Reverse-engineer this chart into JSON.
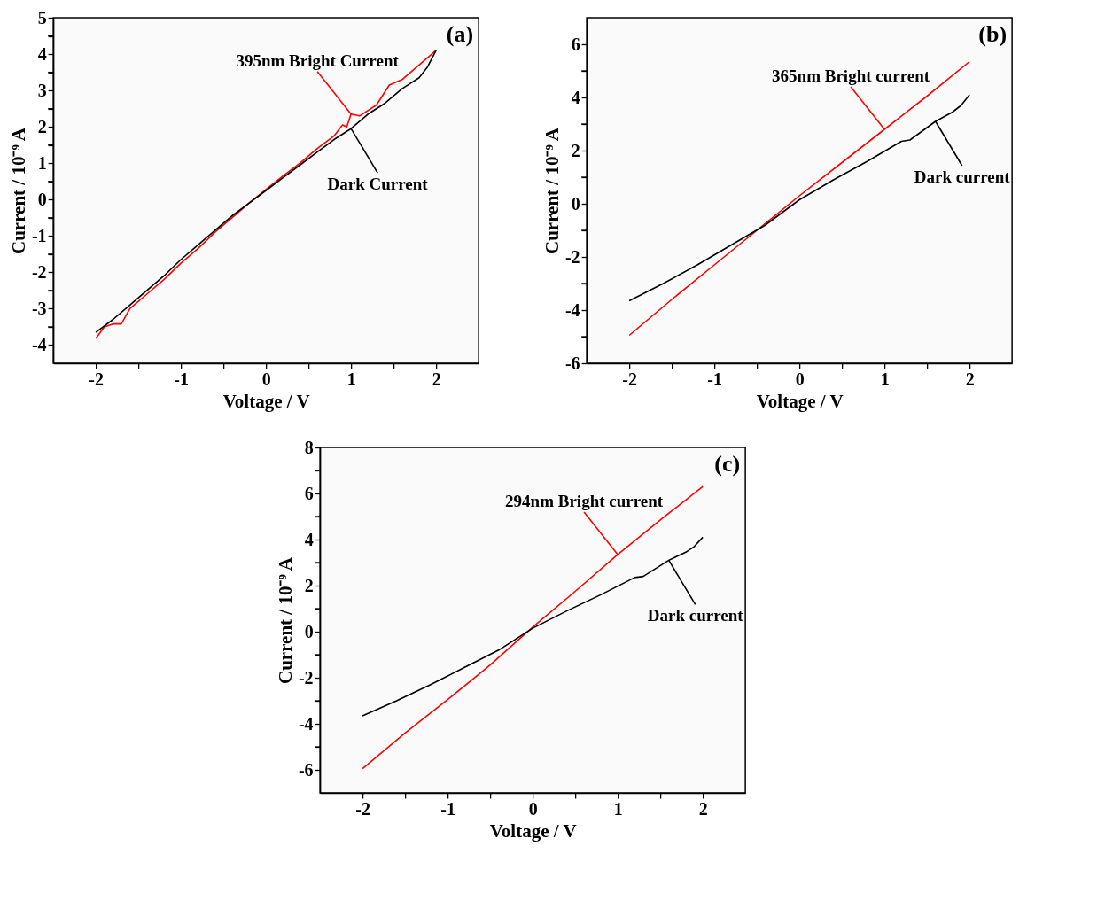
{
  "chart_data": [
    {
      "type": "line",
      "xlabel": "Voltage / V",
      "ylabel": "Current / 10⁻⁹ A",
      "annotations": [
        "(a)"
      ],
      "xlim": [
        -2.5,
        2.5
      ],
      "ylim": [
        -4.5,
        5
      ],
      "xticks": [
        -2,
        {
          "value": -1.5,
          "label": null
        },
        -1,
        {
          "value": -0.5,
          "label": null
        },
        0,
        {
          "value": 0.5,
          "label": null
        },
        1,
        {
          "value": 1.5,
          "label": null
        },
        2
      ],
      "yticks": [
        -4,
        {
          "value": -3.5,
          "label": null
        },
        -3,
        {
          "value": -2.5,
          "label": null
        },
        -2,
        {
          "value": -1.5,
          "label": null
        },
        -1,
        {
          "value": -0.5,
          "label": null
        },
        0,
        {
          "value": 0.5,
          "label": null
        },
        1,
        {
          "value": 1.5,
          "label": null
        },
        2,
        {
          "value": 2.5,
          "label": null
        },
        3,
        {
          "value": 3.5,
          "label": null
        },
        4,
        {
          "value": 4.5,
          "label": null
        },
        5
      ],
      "grid": false,
      "marker": "none",
      "line_style": "solid",
      "series": [
        {
          "name": "395nm Bright Current",
          "color": "#ff0000",
          "x": [
            -2,
            -1.9,
            -1.8,
            -1.7,
            -1.6,
            -1.4,
            -1.2,
            -1,
            -0.8,
            -0.6,
            -0.4,
            -0.2,
            0,
            0.2,
            0.4,
            0.6,
            0.8,
            0.9,
            0.95,
            1.0,
            1.1,
            1.3,
            1.45,
            1.6,
            1.8,
            2
          ],
          "values": [
            -3.82,
            -3.5,
            -3.42,
            -3.42,
            -3.0,
            -2.6,
            -2.2,
            -1.75,
            -1.35,
            -0.9,
            -0.5,
            -0.1,
            0.28,
            0.65,
            1.0,
            1.4,
            1.75,
            2.05,
            2.0,
            2.35,
            2.3,
            2.6,
            3.15,
            3.3,
            3.7,
            4.1
          ]
        },
        {
          "name": "Dark Current",
          "color": "#000000",
          "x": [
            -2,
            -1.8,
            -1.6,
            -1.4,
            -1.2,
            -1,
            -0.8,
            -0.6,
            -0.4,
            -0.2,
            0,
            0.2,
            0.4,
            0.6,
            0.8,
            1.0,
            1.2,
            1.4,
            1.6,
            1.8,
            1.9,
            2
          ],
          "values": [
            -3.65,
            -3.3,
            -2.9,
            -2.5,
            -2.1,
            -1.65,
            -1.25,
            -0.85,
            -0.45,
            -0.1,
            0.25,
            0.6,
            0.95,
            1.3,
            1.65,
            1.95,
            2.35,
            2.65,
            3.05,
            3.35,
            3.65,
            4.1
          ]
        }
      ]
    },
    {
      "type": "line",
      "xlabel": "Voltage / V",
      "ylabel": "Current / 10⁻⁹ A",
      "annotations": [
        "(b)"
      ],
      "xlim": [
        -2.5,
        2.5
      ],
      "ylim": [
        -6,
        7
      ],
      "xticks": [
        -2,
        {
          "value": -1.5,
          "label": null
        },
        -1,
        {
          "value": -0.5,
          "label": null
        },
        0,
        {
          "value": 0.5,
          "label": null
        },
        1,
        {
          "value": 1.5,
          "label": null
        },
        2
      ],
      "yticks": [
        -6,
        {
          "value": -5,
          "label": null
        },
        -4,
        {
          "value": -3,
          "label": null
        },
        -2,
        {
          "value": -1,
          "label": null
        },
        0,
        {
          "value": 1,
          "label": null
        },
        2,
        {
          "value": 3,
          "label": null
        },
        4,
        {
          "value": 5,
          "label": null
        },
        6
      ],
      "grid": false,
      "marker": "none",
      "line_style": "solid",
      "series": [
        {
          "name": "365nm Bright current",
          "color": "#ff0000",
          "x": [
            -2,
            -1.5,
            -1,
            -0.5,
            0,
            0.5,
            1,
            1.5,
            2
          ],
          "values": [
            -4.95,
            -3.6,
            -2.3,
            -1.0,
            0.3,
            1.55,
            2.8,
            4.05,
            5.35
          ]
        },
        {
          "name": "Dark current",
          "color": "#000000",
          "x": [
            -2,
            -1.6,
            -1.2,
            -0.8,
            -0.4,
            0,
            0.4,
            0.8,
            1.2,
            1.3,
            1.6,
            1.8,
            1.9,
            2
          ],
          "values": [
            -3.65,
            -3.0,
            -2.3,
            -1.55,
            -0.8,
            0.15,
            0.9,
            1.6,
            2.35,
            2.4,
            3.1,
            3.45,
            3.7,
            4.1
          ]
        }
      ]
    },
    {
      "type": "line",
      "xlabel": "Voltage / V",
      "ylabel": "Current / 10⁻⁹ A",
      "annotations": [
        "(c)"
      ],
      "xlim": [
        -2.5,
        2.5
      ],
      "ylim": [
        -7,
        8
      ],
      "xticks": [
        -2,
        {
          "value": -1.5,
          "label": null
        },
        -1,
        {
          "value": -0.5,
          "label": null
        },
        0,
        {
          "value": 0.5,
          "label": null
        },
        1,
        {
          "value": 1.5,
          "label": null
        },
        2
      ],
      "yticks": [
        -6,
        {
          "value": -5,
          "label": null
        },
        -4,
        {
          "value": -3,
          "label": null
        },
        -2,
        {
          "value": -1,
          "label": null
        },
        0,
        {
          "value": 1,
          "label": null
        },
        2,
        {
          "value": 3,
          "label": null
        },
        4,
        {
          "value": 5,
          "label": null
        },
        6,
        {
          "value": 7,
          "label": null
        },
        8
      ],
      "grid": false,
      "marker": "none",
      "line_style": "solid",
      "series": [
        {
          "name": "294nm Bright current",
          "color": "#ff0000",
          "x": [
            -2,
            -1.5,
            -1,
            -0.5,
            0,
            0.5,
            1,
            1.5,
            2
          ],
          "values": [
            -5.95,
            -4.4,
            -2.95,
            -1.45,
            0.2,
            1.75,
            3.35,
            4.85,
            6.3
          ]
        },
        {
          "name": "Dark current",
          "color": "#000000",
          "x": [
            -2,
            -1.6,
            -1.2,
            -0.8,
            -0.4,
            0,
            0.4,
            0.8,
            1.2,
            1.3,
            1.6,
            1.8,
            1.9,
            2
          ],
          "values": [
            -3.65,
            -3.0,
            -2.3,
            -1.55,
            -0.8,
            0.15,
            0.9,
            1.6,
            2.35,
            2.4,
            3.1,
            3.45,
            3.7,
            4.1
          ]
        }
      ]
    }
  ]
}
